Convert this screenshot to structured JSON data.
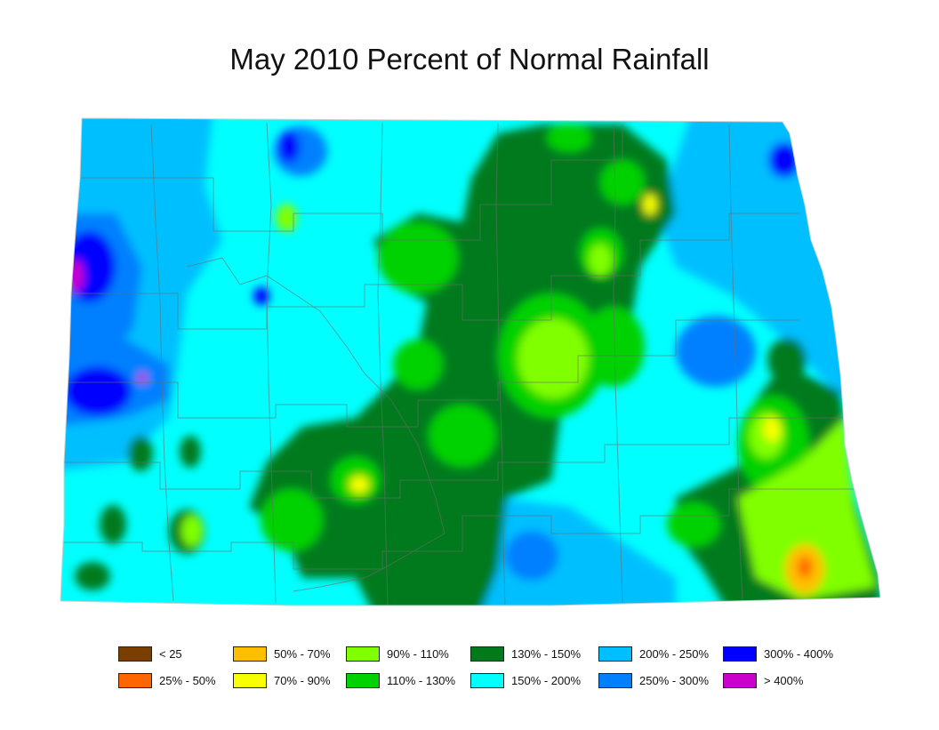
{
  "title": "May 2010 Percent of Normal Rainfall",
  "legend": [
    {
      "label": "< 25",
      "color": "#7a3e00"
    },
    {
      "label": "25% - 50%",
      "color": "#ff6600"
    },
    {
      "label": "50% - 70%",
      "color": "#ffbf00"
    },
    {
      "label": "70% - 90%",
      "color": "#f7ff00"
    },
    {
      "label": "90% - 110%",
      "color": "#80ff00"
    },
    {
      "label": "110% - 130%",
      "color": "#00d100"
    },
    {
      "label": "130% - 150%",
      "color": "#007a1a"
    },
    {
      "label": "150% - 200%",
      "color": "#00ffff"
    },
    {
      "label": "200% - 250%",
      "color": "#00bfff"
    },
    {
      "label": "250% - 300%",
      "color": "#0080ff"
    },
    {
      "label": "300% - 400%",
      "color": "#0000ff"
    },
    {
      "label": "> 400%",
      "color": "#cc00cc"
    }
  ]
}
